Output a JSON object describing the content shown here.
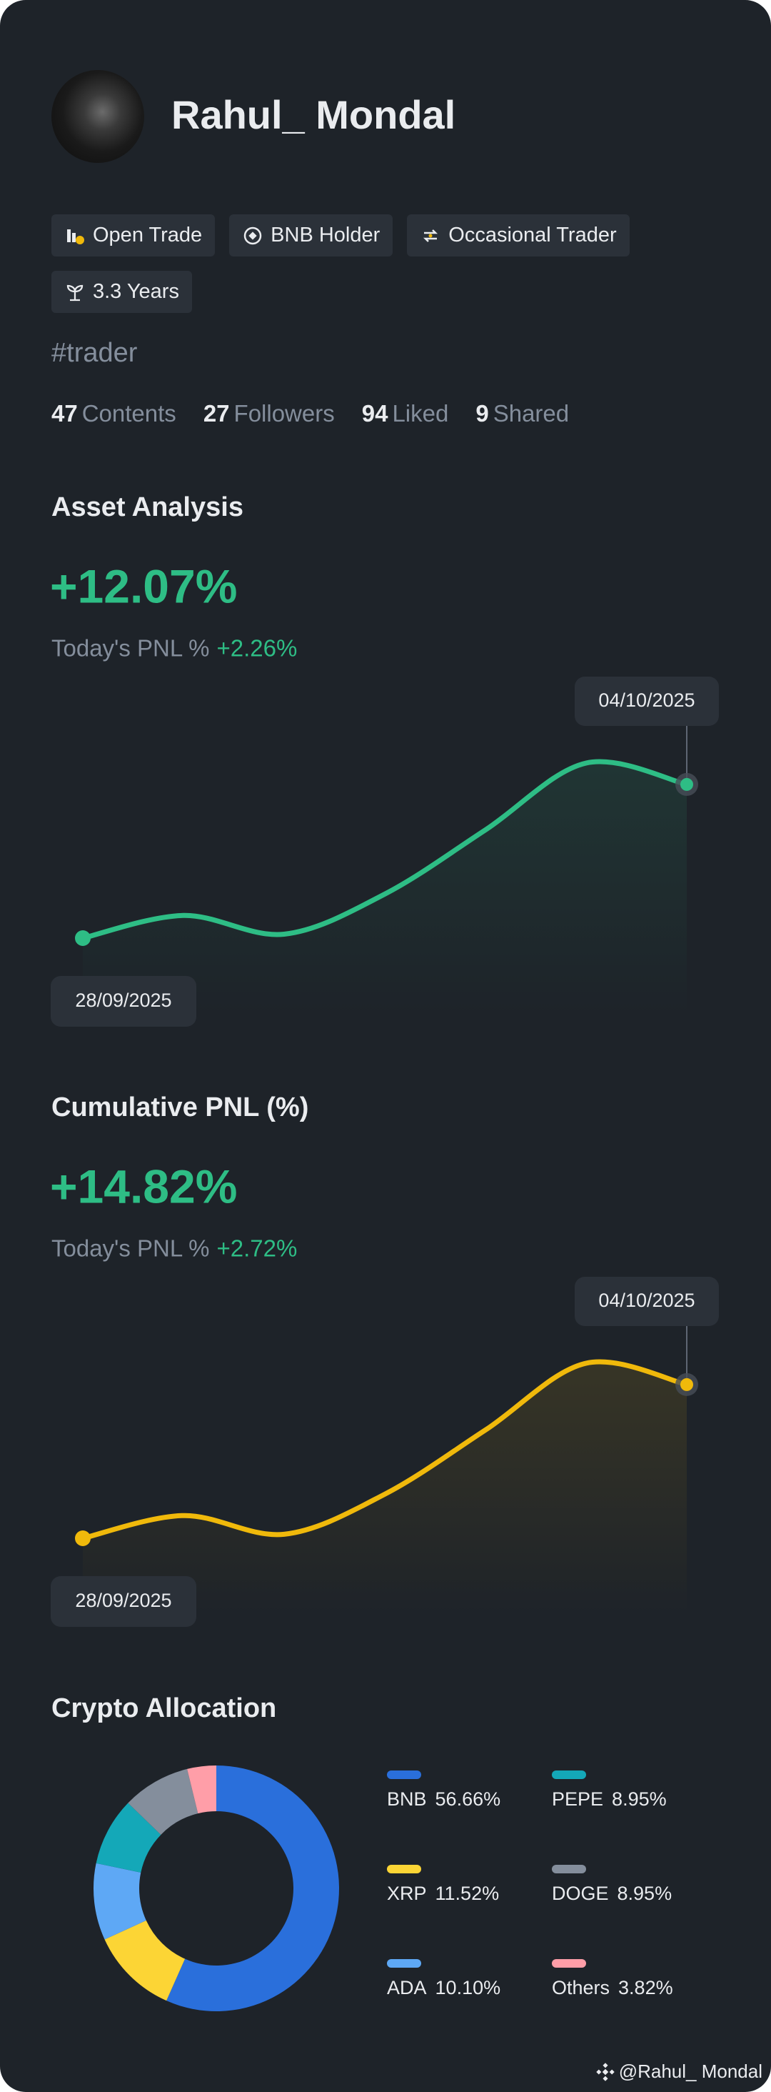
{
  "profile": {
    "name": "Rahul_ Mondal",
    "tags": [
      "Open Trade",
      "BNB Holder",
      "Occasional Trader",
      "3.3 Years"
    ],
    "hashtag": "#trader",
    "stats": [
      {
        "value": "47",
        "label": "Contents"
      },
      {
        "value": "27",
        "label": "Followers"
      },
      {
        "value": "94",
        "label": "Liked"
      },
      {
        "value": "9",
        "label": "Shared"
      }
    ]
  },
  "chart_data": [
    {
      "type": "line",
      "title": "Asset Analysis",
      "headline": "+12.07%",
      "pnl_label": "Today's PNL %",
      "pnl_value": "+2.26%",
      "x": [
        "28/09/2025",
        null,
        null,
        null,
        null,
        null,
        "04/10/2025"
      ],
      "series": [
        {
          "color": "#2ebd85",
          "values": [
            0,
            1.78,
            0.31,
            3.46,
            8.5,
            13.75,
            12.07
          ]
        }
      ]
    },
    {
      "type": "line",
      "title": "Cumulative PNL (%)",
      "headline": "+14.82%",
      "pnl_label": "Today's PNL %",
      "pnl_value": "+2.72%",
      "x": [
        "28/09/2025",
        null,
        null,
        null,
        null,
        null,
        "04/10/2025"
      ],
      "series": [
        {
          "color": "#f0b90b",
          "values": [
            0,
            2.19,
            0.39,
            4.25,
            10.44,
            16.88,
            14.82
          ]
        }
      ]
    },
    {
      "type": "pie",
      "title": "Crypto Allocation",
      "categories": [
        "BNB",
        "XRP",
        "ADA",
        "PEPE",
        "DOGE",
        "Others"
      ],
      "values": [
        56.66,
        11.52,
        10.1,
        8.95,
        8.95,
        3.82
      ],
      "value_labels": [
        "56.66%",
        "11.52%",
        "10.10%",
        "8.95%",
        "8.95%",
        "3.82%"
      ],
      "colors": [
        "#2a6fdb",
        "#fcd535",
        "#5ea8f5",
        "#14a8b8",
        "#848e9c",
        "#ff9ea8"
      ]
    }
  ],
  "watermark": "@Rahul_ Mondal"
}
